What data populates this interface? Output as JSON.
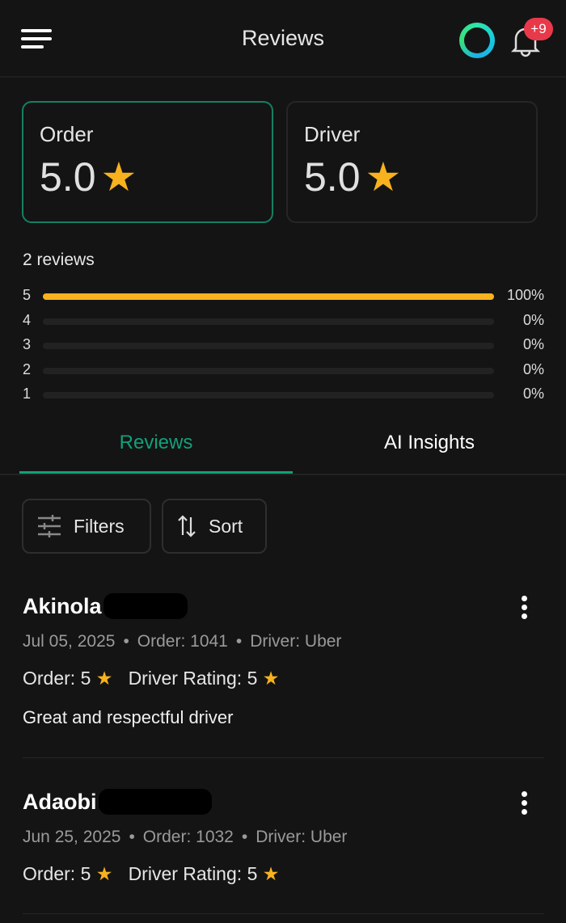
{
  "header": {
    "title": "Reviews",
    "notification_badge": "+9"
  },
  "summary": {
    "cards": [
      {
        "label": "Order",
        "value": "5.0"
      },
      {
        "label": "Driver",
        "value": "5.0"
      }
    ],
    "review_count": "2 reviews",
    "distribution": [
      {
        "star": "5",
        "percent": "100%",
        "fraction": 1.0
      },
      {
        "star": "4",
        "percent": "0%",
        "fraction": 0
      },
      {
        "star": "3",
        "percent": "0%",
        "fraction": 0
      },
      {
        "star": "2",
        "percent": "0%",
        "fraction": 0
      },
      {
        "star": "1",
        "percent": "0%",
        "fraction": 0
      }
    ]
  },
  "tabs": [
    {
      "label": "Reviews",
      "active": true
    },
    {
      "label": "AI Insights",
      "active": false
    }
  ],
  "toolbar": {
    "filters": "Filters",
    "sort": "Sort"
  },
  "reviews": [
    {
      "name": "Akinola",
      "date": "Jul 05, 2025",
      "order": "Order: 1041",
      "driver": "Driver: Uber",
      "order_rating_label": "Order:",
      "order_rating": "5",
      "driver_rating_label": "Driver Rating:",
      "driver_rating": "5",
      "comment": "Great and respectful driver"
    },
    {
      "name": "Adaobi",
      "date": "Jun 25, 2025",
      "order": "Order: 1032",
      "driver": "Driver: Uber",
      "order_rating_label": "Order:",
      "order_rating": "5",
      "driver_rating_label": "Driver Rating:",
      "driver_rating": "5"
    }
  ],
  "colors": {
    "accent": "#12a07a",
    "star": "#f7b21e",
    "badge": "#e8394a",
    "background": "#141414"
  }
}
